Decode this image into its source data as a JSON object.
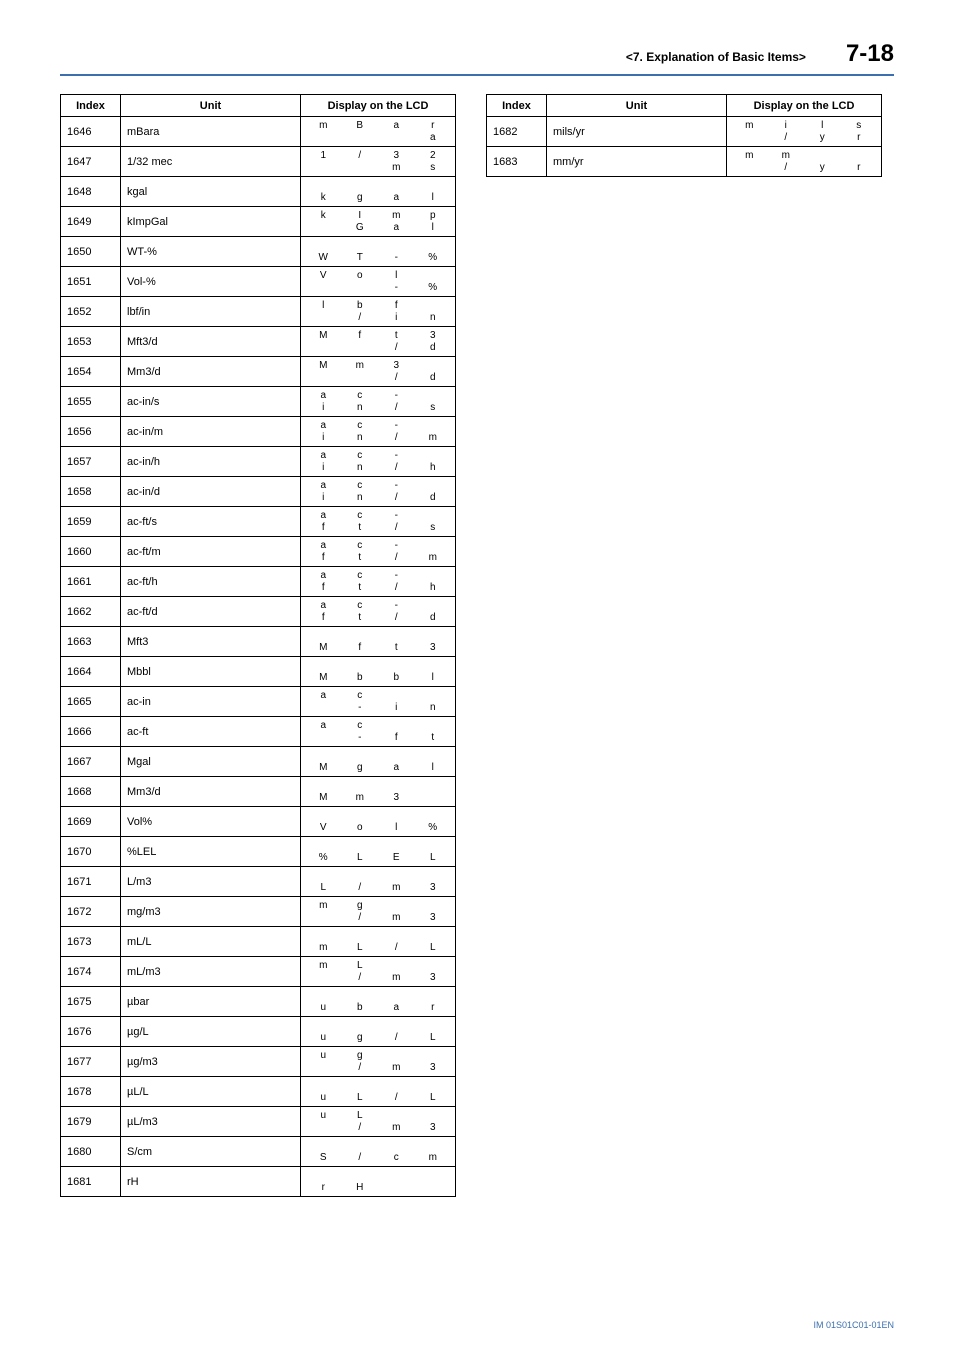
{
  "header": {
    "section_title": "<7.  Explanation of Basic Items>",
    "page_number": "7-18"
  },
  "table_headers": {
    "index": "Index",
    "unit": "Unit",
    "lcd": "Display on the LCD"
  },
  "left_rows": [
    {
      "idx": "1646",
      "unit": "mBara",
      "lcd": [
        "m",
        "B",
        "a",
        "r",
        "",
        "",
        "",
        "a"
      ]
    },
    {
      "idx": "1647",
      "unit": "1/32 mec",
      "lcd": [
        "1",
        "/",
        "3",
        "2",
        "",
        "",
        "m",
        "s"
      ]
    },
    {
      "idx": "1648",
      "unit": "kgal",
      "lcd": [
        "",
        "",
        "",
        "",
        "k",
        "g",
        "a",
        "l"
      ]
    },
    {
      "idx": "1649",
      "unit": "kImpGal",
      "lcd": [
        "k",
        "I",
        "m",
        "p",
        "",
        "G",
        "a",
        "l"
      ]
    },
    {
      "idx": "1650",
      "unit": "WT-%",
      "lcd": [
        "",
        "",
        "",
        "",
        "W",
        "T",
        "-",
        "%"
      ]
    },
    {
      "idx": "1651",
      "unit": "Vol-%",
      "lcd": [
        "V",
        "o",
        "l",
        "",
        "",
        "",
        "-",
        "%"
      ]
    },
    {
      "idx": "1652",
      "unit": "lbf/in",
      "lcd": [
        "l",
        "b",
        "f",
        "",
        "",
        "/",
        "i",
        "n"
      ]
    },
    {
      "idx": "1653",
      "unit": "Mft3/d",
      "lcd": [
        "M",
        "f",
        "t",
        "3",
        "",
        "",
        "/",
        "d"
      ]
    },
    {
      "idx": "1654",
      "unit": "Mm3/d",
      "lcd": [
        "M",
        "m",
        "3",
        "",
        "",
        "",
        "/",
        "d"
      ]
    },
    {
      "idx": "1655",
      "unit": "ac-in/s",
      "lcd": [
        "a",
        "c",
        "-",
        "",
        "i",
        "n",
        "/",
        "s"
      ]
    },
    {
      "idx": "1656",
      "unit": "ac-in/m",
      "lcd": [
        "a",
        "c",
        "-",
        "",
        "i",
        "n",
        "/",
        "m"
      ]
    },
    {
      "idx": "1657",
      "unit": "ac-in/h",
      "lcd": [
        "a",
        "c",
        "-",
        "",
        "i",
        "n",
        "/",
        "h"
      ]
    },
    {
      "idx": "1658",
      "unit": "ac-in/d",
      "lcd": [
        "a",
        "c",
        "-",
        "",
        "i",
        "n",
        "/",
        "d"
      ]
    },
    {
      "idx": "1659",
      "unit": "ac-ft/s",
      "lcd": [
        "a",
        "c",
        "-",
        "",
        "f",
        "t",
        "/",
        "s"
      ]
    },
    {
      "idx": "1660",
      "unit": "ac-ft/m",
      "lcd": [
        "a",
        "c",
        "-",
        "",
        "f",
        "t",
        "/",
        "m"
      ]
    },
    {
      "idx": "1661",
      "unit": "ac-ft/h",
      "lcd": [
        "a",
        "c",
        "-",
        "",
        "f",
        "t",
        "/",
        "h"
      ]
    },
    {
      "idx": "1662",
      "unit": "ac-ft/d",
      "lcd": [
        "a",
        "c",
        "-",
        "",
        "f",
        "t",
        "/",
        "d"
      ]
    },
    {
      "idx": "1663",
      "unit": "Mft3",
      "lcd": [
        "",
        "",
        "",
        "",
        "M",
        "f",
        "t",
        "3"
      ]
    },
    {
      "idx": "1664",
      "unit": "Mbbl",
      "lcd": [
        "",
        "",
        "",
        "",
        "M",
        "b",
        "b",
        "l"
      ]
    },
    {
      "idx": "1665",
      "unit": "ac-in",
      "lcd": [
        "a",
        "c",
        "",
        "",
        "",
        "-",
        "i",
        "n"
      ]
    },
    {
      "idx": "1666",
      "unit": "ac-ft",
      "lcd": [
        "a",
        "c",
        "",
        "",
        "",
        "-",
        "f",
        "t"
      ]
    },
    {
      "idx": "1667",
      "unit": "Mgal",
      "lcd": [
        "",
        "",
        "",
        "",
        "M",
        "g",
        "a",
        "l"
      ]
    },
    {
      "idx": "1668",
      "unit": "Mm3/d",
      "lcd": [
        "",
        "",
        "",
        "",
        "M",
        "m",
        "3",
        ""
      ]
    },
    {
      "idx": "1669",
      "unit": "Vol%",
      "lcd": [
        "",
        "",
        "",
        "",
        "V",
        "o",
        "l",
        "%"
      ]
    },
    {
      "idx": "1670",
      "unit": "%LEL",
      "lcd": [
        "",
        "",
        "",
        "",
        "%",
        "L",
        "E",
        "L"
      ]
    },
    {
      "idx": "1671",
      "unit": "L/m3",
      "lcd": [
        "",
        "",
        "",
        "",
        "L",
        "/",
        "m",
        "3"
      ]
    },
    {
      "idx": "1672",
      "unit": "mg/m3",
      "lcd": [
        "m",
        "g",
        "",
        "",
        "",
        "/",
        "m",
        "3"
      ]
    },
    {
      "idx": "1673",
      "unit": "mL/L",
      "lcd": [
        "",
        "",
        "",
        "",
        "m",
        "L",
        "/",
        "L"
      ]
    },
    {
      "idx": "1674",
      "unit": "mL/m3",
      "lcd": [
        "m",
        "L",
        "",
        "",
        "",
        "/",
        "m",
        "3"
      ]
    },
    {
      "idx": "1675",
      "unit": "µbar",
      "lcd": [
        "",
        "",
        "",
        "",
        "u",
        "b",
        "a",
        "r"
      ]
    },
    {
      "idx": "1676",
      "unit": "µg/L",
      "lcd": [
        "",
        "",
        "",
        "",
        "u",
        "g",
        "/",
        "L"
      ]
    },
    {
      "idx": "1677",
      "unit": "µg/m3",
      "lcd": [
        "u",
        "g",
        "",
        "",
        "",
        "/",
        "m",
        "3"
      ]
    },
    {
      "idx": "1678",
      "unit": "µL/L",
      "lcd": [
        "",
        "",
        "",
        "",
        "u",
        "L",
        "/",
        "L"
      ]
    },
    {
      "idx": "1679",
      "unit": "µL/m3",
      "lcd": [
        "u",
        "L",
        "",
        "",
        "",
        "/",
        "m",
        "3"
      ]
    },
    {
      "idx": "1680",
      "unit": "S/cm",
      "lcd": [
        "",
        "",
        "",
        "",
        "S",
        "/",
        "c",
        "m"
      ]
    },
    {
      "idx": "1681",
      "unit": "rH",
      "lcd": [
        "",
        "",
        "",
        "",
        "r",
        "H",
        "",
        ""
      ]
    }
  ],
  "right_rows": [
    {
      "idx": "1682",
      "unit": "mils/yr",
      "lcd": [
        "m",
        "i",
        "l",
        "s",
        "",
        "/",
        "y",
        "r"
      ]
    },
    {
      "idx": "1683",
      "unit": "mm/yr",
      "lcd": [
        "m",
        "m",
        "",
        "",
        "",
        "/",
        "y",
        "r"
      ]
    }
  ],
  "doc_id": "IM 01S01C01-01EN"
}
